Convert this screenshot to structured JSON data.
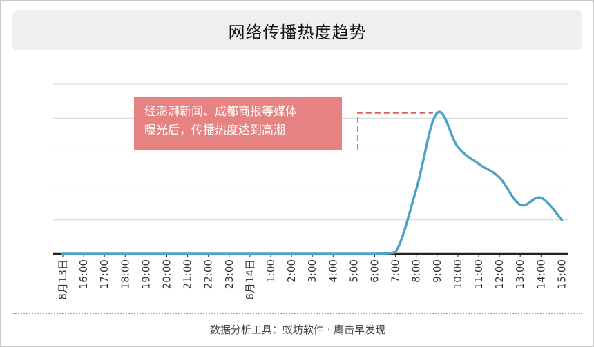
{
  "title": "网络传播热度趋势",
  "annotation": {
    "text": "经澎湃新闻、成都商报等媒体\n曝光后，传播热度达到高潮",
    "box_color": "#e78282"
  },
  "footer": "数据分析工具：蚁坊软件 · 鹰击早发现",
  "colors": {
    "line": "#4fa1c6",
    "grid": "#d4d4d4",
    "axis": "#222222",
    "marker": "#e04040"
  },
  "chart_data": {
    "type": "line",
    "title": "网络传播热度趋势",
    "xlabel": "",
    "ylabel": "",
    "ylim": [
      0,
      100
    ],
    "grid": true,
    "legend": "none",
    "categories": [
      "8月13日",
      "16:00",
      "17:00",
      "18:00",
      "19:00",
      "20:00",
      "21:00",
      "22:00",
      "23:00",
      "8月14日",
      "1:00",
      "2:00",
      "3:00",
      "4:00",
      "5:00",
      "6:00",
      "7:00",
      "8:00",
      "9:00",
      "10:00",
      "11:00",
      "12:00",
      "13:00",
      "14:00",
      "15:00"
    ],
    "series": [
      {
        "values": [
          0,
          0,
          0,
          0,
          0,
          0,
          0,
          0,
          0,
          0,
          0,
          0,
          0,
          0,
          0,
          0,
          1,
          38,
          83,
          63,
          53,
          45,
          29,
          33,
          20
        ]
      }
    ],
    "peak_annotation_index": 18
  }
}
